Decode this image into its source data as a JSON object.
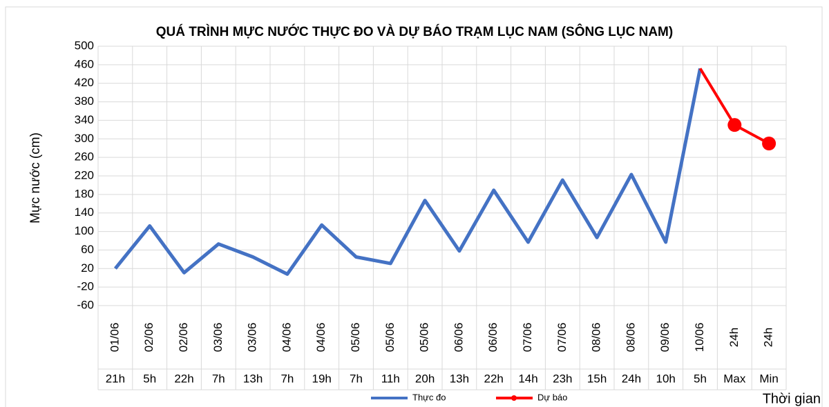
{
  "chart_data": {
    "type": "line",
    "title": "QUÁ TRÌNH MỰC NƯỚC THỰC ĐO VÀ DỰ BÁO TRẠM LỤC NAM (SÔNG LỤC NAM)",
    "ylabel": "Mực nước (cm)",
    "xlabel": "Thời gian",
    "categories": [
      "01/06",
      "02/06",
      "02/06",
      "03/06",
      "03/06",
      "04/06",
      "04/06",
      "05/06",
      "05/06",
      "05/06",
      "06/06",
      "06/06",
      "07/06",
      "07/06",
      "08/06",
      "08/06",
      "09/06",
      "10/06",
      "24h",
      "24h"
    ],
    "subcategories": [
      "21h",
      "5h",
      "22h",
      "7h",
      "13h",
      "7h",
      "19h",
      "7h",
      "11h",
      "20h",
      "13h",
      "22h",
      "14h",
      "23h",
      "15h",
      "24h",
      "10h",
      "5h",
      "Max",
      "Min"
    ],
    "series": [
      {
        "name": "Thực đo",
        "color": "#4472c4",
        "values": [
          20,
          112,
          11,
          73,
          45,
          8,
          114,
          45,
          31,
          167,
          58,
          189,
          77,
          211,
          87,
          223,
          77,
          452,
          null,
          null
        ]
      },
      {
        "name": "Dự báo",
        "color": "#ff0000",
        "values": [
          null,
          null,
          null,
          null,
          null,
          null,
          null,
          null,
          null,
          null,
          null,
          null,
          null,
          null,
          null,
          null,
          null,
          452,
          330,
          290
        ]
      }
    ],
    "ylim": [
      -60,
      500
    ],
    "yticks": [
      -60,
      -20,
      20,
      60,
      100,
      140,
      180,
      220,
      260,
      300,
      340,
      380,
      420,
      460,
      500
    ],
    "grid": true,
    "legend": "bottom"
  }
}
